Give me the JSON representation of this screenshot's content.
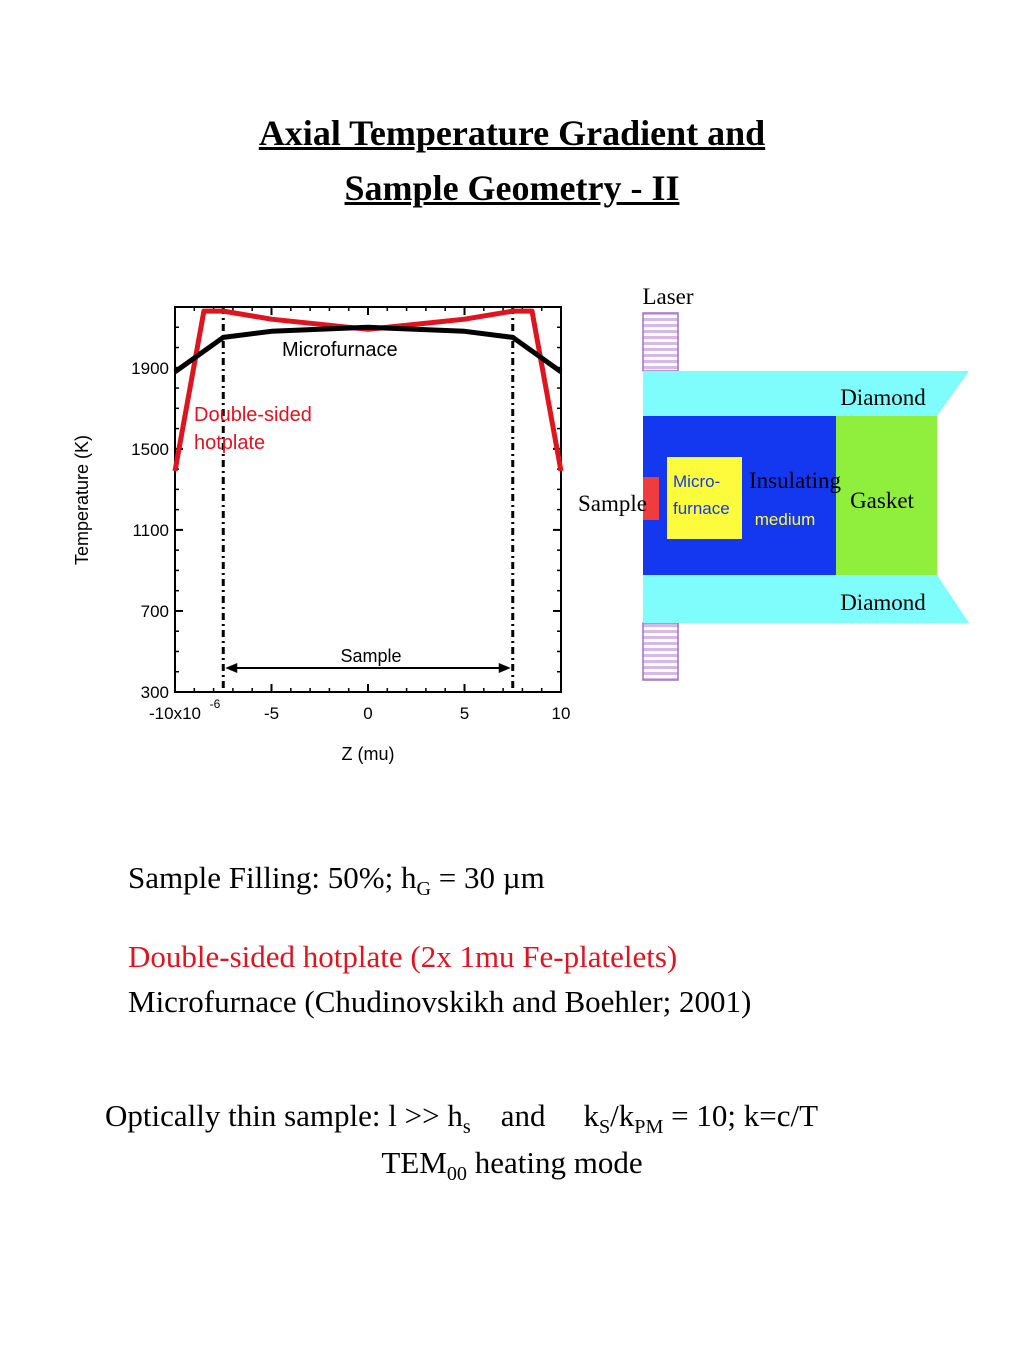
{
  "slide": {
    "title_line1": "Axial Temperature Gradient and",
    "title_line2": "Sample Geometry - II"
  },
  "chart_data": {
    "type": "line",
    "xlabel": "Z (mu)",
    "ylabel": "Temperature (K)",
    "xlim": [
      -10,
      10
    ],
    "ylim": [
      300,
      2200
    ],
    "x_ticks": [
      "-10x10",
      "-5",
      "0",
      "5",
      "10"
    ],
    "x_tick_exponent": "-6",
    "y_ticks": [
      "300",
      "700",
      "1100",
      "1500",
      "1900"
    ],
    "series": [
      {
        "name": "Microfurnace",
        "color": "#000000",
        "x": [
          -10,
          -7.5,
          -5,
          0,
          5,
          7.5,
          10
        ],
        "y": [
          1880,
          2050,
          2080,
          2100,
          2080,
          2050,
          1880
        ]
      },
      {
        "name": "Double-sided hotplate",
        "color": "#e0141e",
        "x": [
          -10,
          -8.5,
          -7.5,
          -5,
          0,
          5,
          7.5,
          8.5,
          10
        ],
        "y": [
          1390,
          2180,
          2180,
          2140,
          2090,
          2140,
          2180,
          2180,
          1390
        ]
      }
    ],
    "annotations": {
      "microfurnace_label": "Microfurnace",
      "hotplate_label_1": "Double-sided",
      "hotplate_label_2": "hotplate",
      "sample_label": "Sample"
    },
    "sample_bounds": [
      -7.5,
      7.5
    ]
  },
  "diagram": {
    "laser": "Laser",
    "diamond_top": "Diamond",
    "diamond_bottom": "Diamond",
    "insulating_1": "Insulating",
    "insulating_2": "medium",
    "micro_1": "Micro-",
    "micro_2": "furnace",
    "sample": "Sample",
    "gasket": "Gasket",
    "colors": {
      "diamond": "#7ffcfc",
      "insulating": "#1438f0",
      "gasket": "#90ee3c",
      "microfurnace": "#fcfc3c",
      "sample": "#f03c3c",
      "laser": "#e8d4f0"
    }
  },
  "notes": {
    "filling_prefix": "Sample Filling: 50%; h",
    "filling_sub": "G",
    "filling_suffix": " = 30 µm",
    "hotplate": "Double-sided hotplate (2x 1mu Fe-platelets)",
    "microfurnace": "Microfurnace (Chudinovskikh and Boehler; 2001)",
    "thin_1": "Optically thin sample: l >> h",
    "thin_sub_s": "s",
    "thin_and": "and",
    "thin_k": "k",
    "thin_sub_S": "S",
    "thin_slash": "/k",
    "thin_sub_PM": "PM",
    "thin_end": " = 10; k=c/T",
    "tem": "TEM",
    "tem_sub": "00",
    "tem_end": " heating mode"
  }
}
